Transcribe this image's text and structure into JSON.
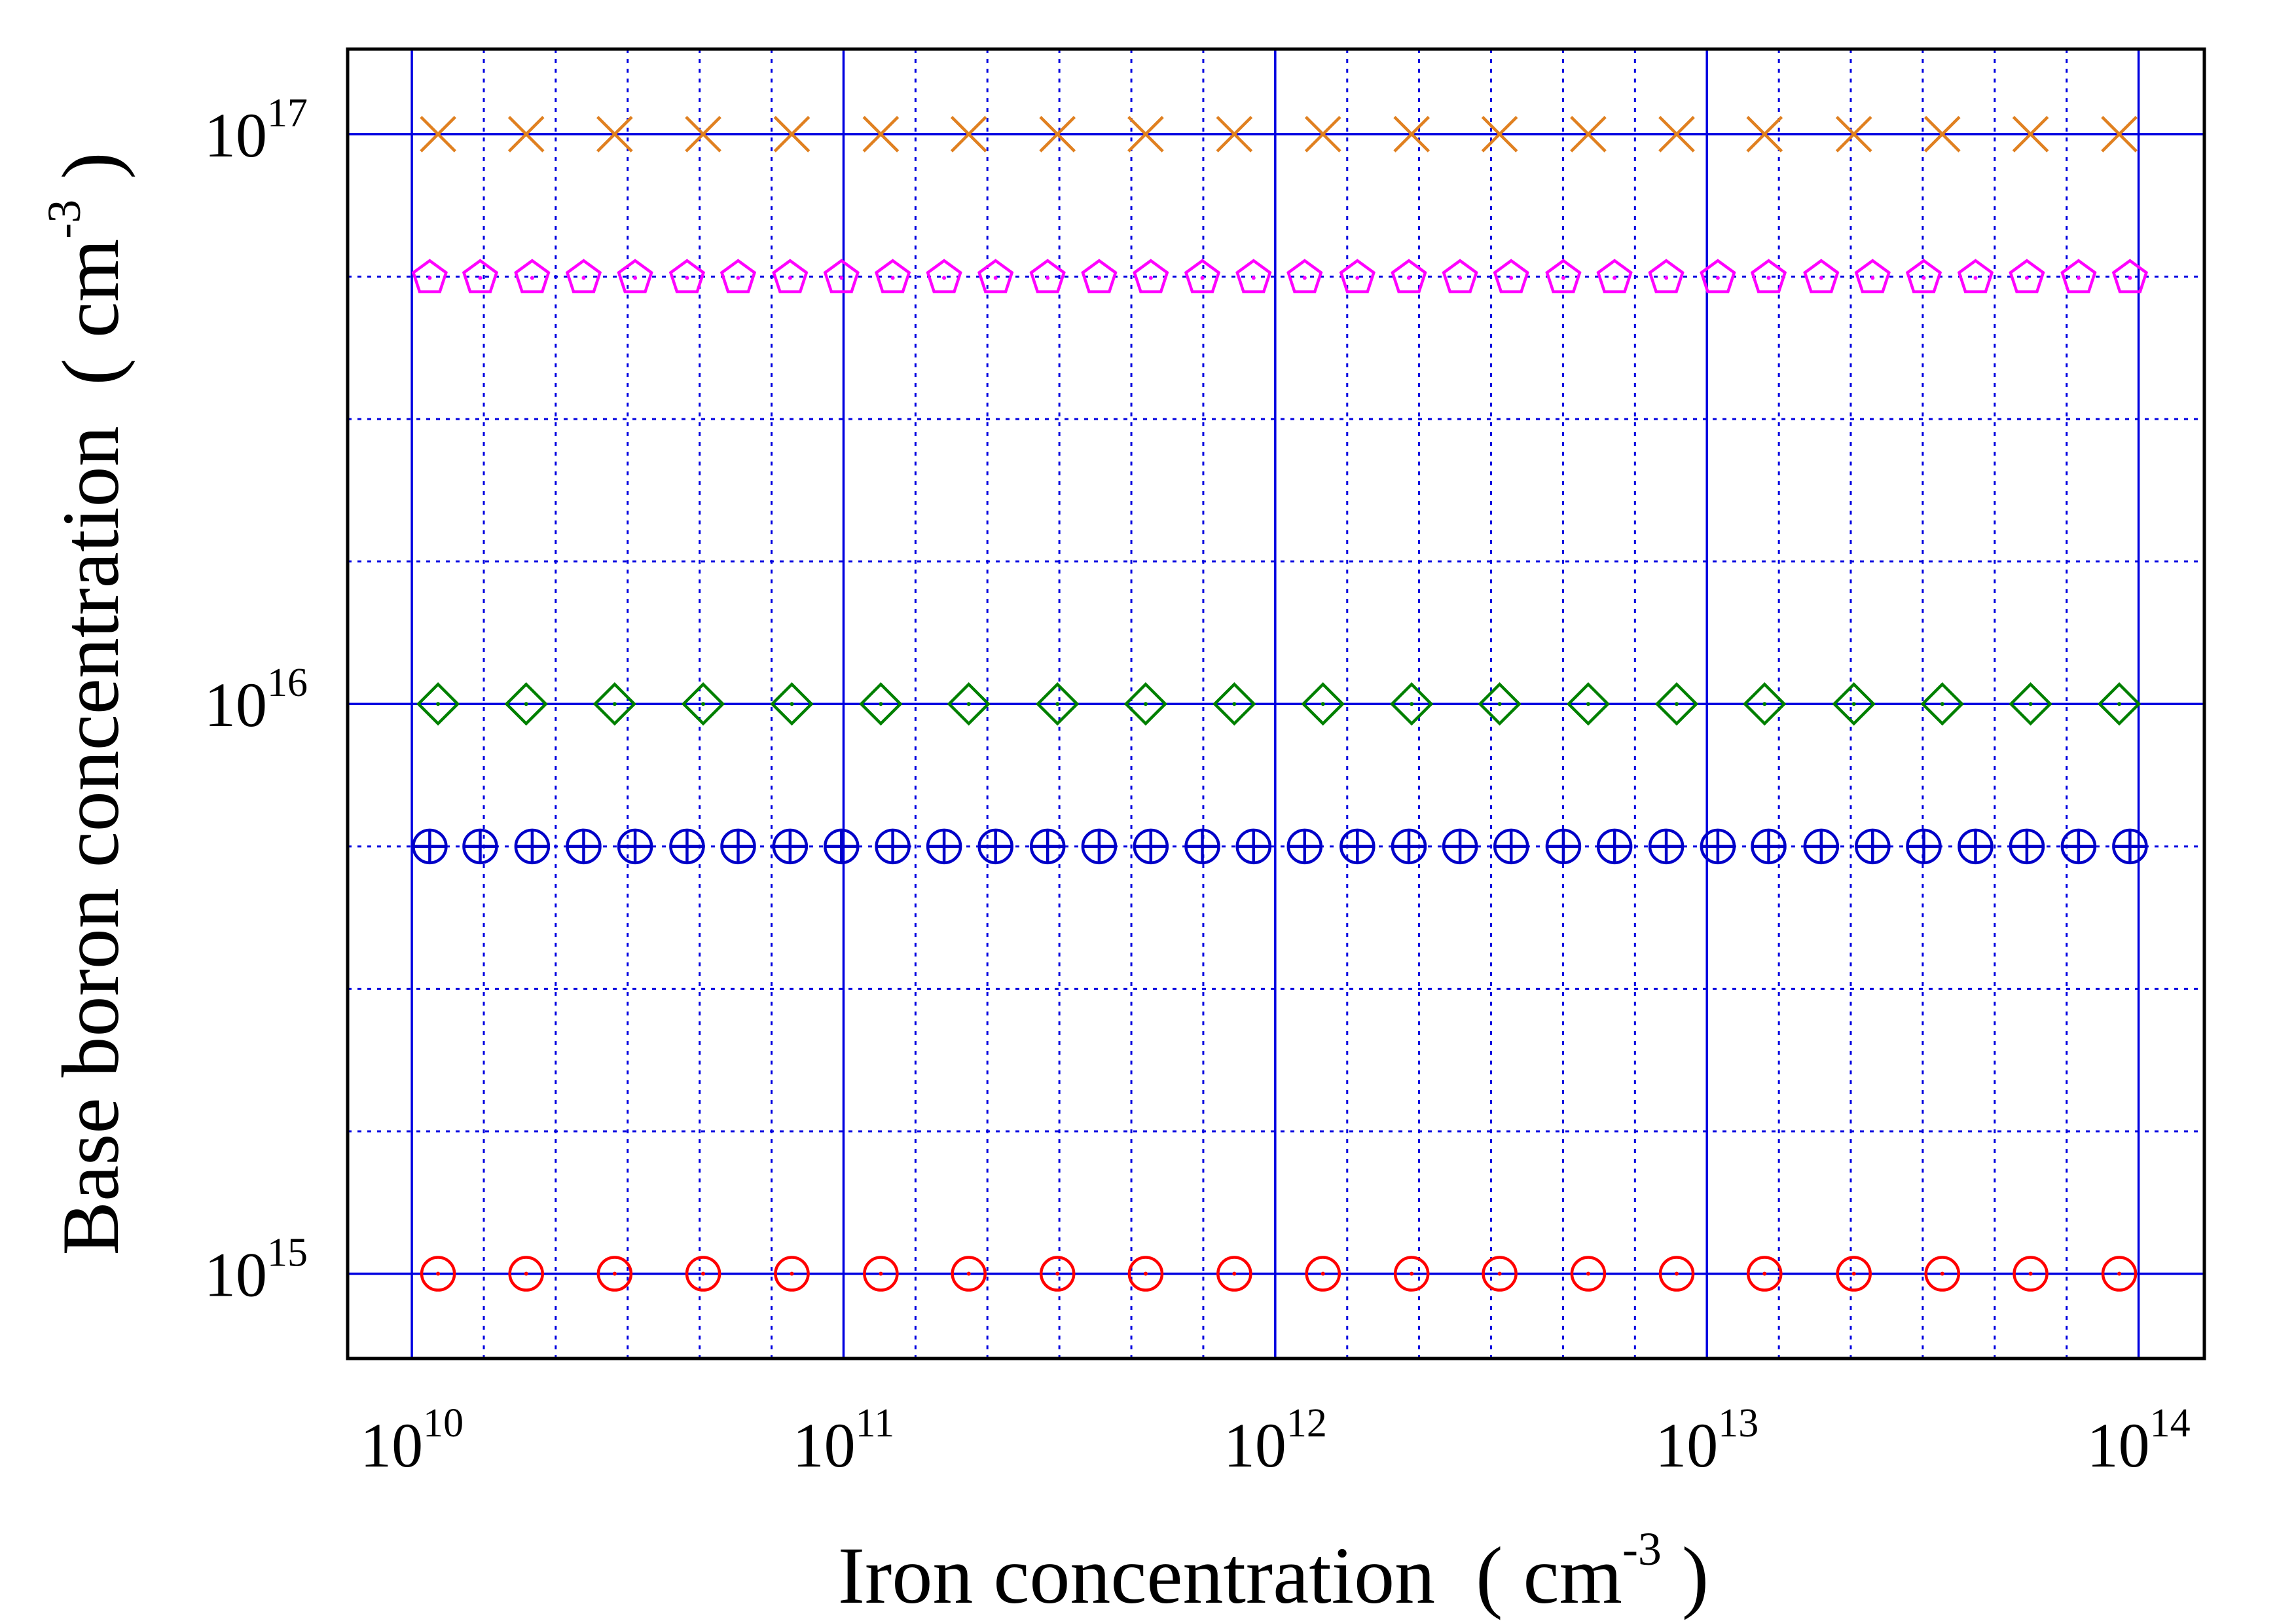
{
  "chart_data": {
    "type": "scatter",
    "xlabel_parts": [
      "Iron concentration  ( cm",
      "-3",
      " )"
    ],
    "ylabel_parts": [
      "Base boron concentration  ( cm",
      "-3",
      " )"
    ],
    "log_x": true,
    "log_y": true,
    "grid": true,
    "grid_color": "#0000e0",
    "xlim": [
      7100000000,
      142000000000000
    ],
    "ylim": [
      710000000000000,
      141000000000000000
    ],
    "xticks": [
      {
        "value": 10000000000,
        "label": "10",
        "exponent": "10"
      },
      {
        "value": 100000000000,
        "label": "10",
        "exponent": "11"
      },
      {
        "value": 1000000000000,
        "label": "10",
        "exponent": "12"
      },
      {
        "value": 10000000000000,
        "label": "10",
        "exponent": "13"
      },
      {
        "value": 100000000000000,
        "label": "10",
        "exponent": "14"
      }
    ],
    "yticks": [
      {
        "value": 1000000000000000,
        "label": "10",
        "exponent": "15"
      },
      {
        "value": 10000000000000000,
        "label": "10",
        "exponent": "16"
      },
      {
        "value": 100000000000000000,
        "label": "10",
        "exponent": "17"
      }
    ],
    "xminor": [
      14680000000,
      21540000000,
      31620000000,
      46420000000,
      68130000000,
      146800000000,
      215400000000,
      316200000000,
      464200000000,
      681300000000,
      1468000000000,
      2154000000000,
      3162000000000,
      4642000000000,
      6813000000000,
      14680000000000,
      21540000000000,
      31620000000000,
      46420000000000,
      68130000000000
    ],
    "yminor": [
      1778000000000000,
      3162000000000000,
      5623000000000000,
      17780000000000000,
      31620000000000000,
      56230000000000000
    ],
    "series": [
      {
        "color": "#ff0000",
        "marker": "circle-dot",
        "x": [
          11500000000,
          18400000000,
          29500000000,
          47300000000,
          75900000000,
          122000000000,
          195000000000,
          313000000000,
          501000000000,
          804000000000,
          1290000000000,
          2070000000000,
          3310000000000,
          5310000000000,
          8510000000000,
          13600000000000,
          21900000000000,
          35100000000000,
          56200000000000,
          90200000000000
        ],
        "values": [
          1000000000000000,
          1000000000000000,
          1000000000000000,
          1000000000000000,
          1000000000000000,
          1000000000000000,
          1000000000000000,
          1000000000000000,
          1000000000000000,
          1000000000000000,
          1000000000000000,
          1000000000000000,
          1000000000000000,
          1000000000000000,
          1000000000000000,
          1000000000000000,
          1000000000000000,
          1000000000000000,
          1000000000000000,
          1000000000000000
        ]
      },
      {
        "color": "#0000c8",
        "marker": "circle-plus",
        "x": [
          11000000000,
          14400000000,
          19000000000,
          25000000000,
          32900000000,
          43400000000,
          57000000000,
          75200000000,
          98900000000,
          130000000000,
          171000000000,
          225000000000,
          297000000000,
          391000000000,
          515000000000,
          678000000000,
          891000000000,
          1170000000000,
          1550000000000,
          2040000000000,
          2680000000000,
          3520000000000,
          4650000000000,
          6110000000000,
          8050000000000,
          10600000000000,
          13900000000000,
          18400000000000,
          24200000000000,
          31800000000000,
          41900000000000,
          55100000000000,
          72600000000000,
          95500000000000
        ],
        "values": [
          5623000000000000,
          5623000000000000,
          5623000000000000,
          5623000000000000,
          5623000000000000,
          5623000000000000,
          5623000000000000,
          5623000000000000,
          5623000000000000,
          5623000000000000,
          5623000000000000,
          5623000000000000,
          5623000000000000,
          5623000000000000,
          5623000000000000,
          5623000000000000,
          5623000000000000,
          5623000000000000,
          5623000000000000,
          5623000000000000,
          5623000000000000,
          5623000000000000,
          5623000000000000,
          5623000000000000,
          5623000000000000,
          5623000000000000,
          5623000000000000,
          5623000000000000,
          5623000000000000,
          5623000000000000,
          5623000000000000,
          5623000000000000,
          5623000000000000,
          5623000000000000
        ]
      },
      {
        "color": "#008000",
        "marker": "diamond-dot",
        "x": [
          11500000000,
          18400000000,
          29500000000,
          47300000000,
          75900000000,
          122000000000,
          195000000000,
          313000000000,
          501000000000,
          804000000000,
          1290000000000,
          2070000000000,
          3310000000000,
          5310000000000,
          8510000000000,
          13600000000000,
          21900000000000,
          35100000000000,
          56200000000000,
          90200000000000
        ],
        "values": [
          10000000000000000,
          10000000000000000,
          10000000000000000,
          10000000000000000,
          10000000000000000,
          10000000000000000,
          10000000000000000,
          10000000000000000,
          10000000000000000,
          10000000000000000,
          10000000000000000,
          10000000000000000,
          10000000000000000,
          10000000000000000,
          10000000000000000,
          10000000000000000,
          10000000000000000,
          10000000000000000,
          10000000000000000,
          10000000000000000
        ]
      },
      {
        "color": "#ff00ff",
        "marker": "pentagon-dot",
        "x": [
          11000000000,
          14400000000,
          19000000000,
          25000000000,
          32900000000,
          43400000000,
          57000000000,
          75200000000,
          98900000000,
          130000000000,
          171000000000,
          225000000000,
          297000000000,
          391000000000,
          515000000000,
          678000000000,
          891000000000,
          1170000000000,
          1550000000000,
          2040000000000,
          2680000000000,
          3520000000000,
          4650000000000,
          6110000000000,
          8050000000000,
          10600000000000,
          13900000000000,
          18400000000000,
          24200000000000,
          31800000000000,
          41900000000000,
          55100000000000,
          72600000000000,
          95500000000000
        ],
        "values": [
          56230000000000000,
          56230000000000000,
          56230000000000000,
          56230000000000000,
          56230000000000000,
          56230000000000000,
          56230000000000000,
          56230000000000000,
          56230000000000000,
          56230000000000000,
          56230000000000000,
          56230000000000000,
          56230000000000000,
          56230000000000000,
          56230000000000000,
          56230000000000000,
          56230000000000000,
          56230000000000000,
          56230000000000000,
          56230000000000000,
          56230000000000000,
          56230000000000000,
          56230000000000000,
          56230000000000000,
          56230000000000000,
          56230000000000000,
          56230000000000000,
          56230000000000000,
          56230000000000000,
          56230000000000000,
          56230000000000000,
          56230000000000000,
          56230000000000000,
          56230000000000000
        ]
      },
      {
        "color": "#e08020",
        "marker": "x",
        "x": [
          11500000000,
          18400000000,
          29500000000,
          47300000000,
          75900000000,
          122000000000,
          195000000000,
          313000000000,
          501000000000,
          804000000000,
          1290000000000,
          2070000000000,
          3310000000000,
          5310000000000,
          8510000000000,
          13600000000000,
          21900000000000,
          35100000000000,
          56200000000000,
          90200000000000
        ],
        "values": [
          100000000000000000,
          100000000000000000,
          100000000000000000,
          100000000000000000,
          100000000000000000,
          100000000000000000,
          100000000000000000,
          100000000000000000,
          100000000000000000,
          100000000000000000,
          100000000000000000,
          100000000000000000,
          100000000000000000,
          100000000000000000,
          100000000000000000,
          100000000000000000,
          100000000000000000,
          100000000000000000,
          100000000000000000,
          100000000000000000
        ]
      }
    ]
  }
}
